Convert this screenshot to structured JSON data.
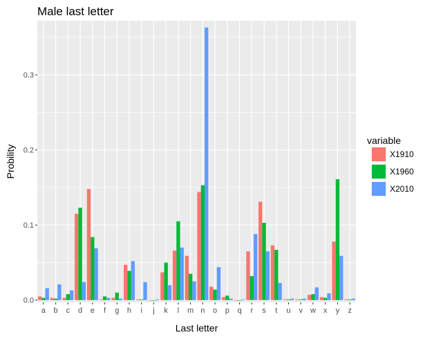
{
  "chart_data": {
    "type": "bar",
    "title": "Male last letter",
    "xlabel": "Last letter",
    "ylabel": "Probility",
    "ylim": [
      -0.003,
      0.372
    ],
    "yticks": [
      0.0,
      0.1,
      0.2,
      0.3
    ],
    "ytick_labels": [
      "0.0",
      "0.1",
      "0.2",
      "0.3"
    ],
    "grid": true,
    "legend_title": "variable",
    "legend_position": "right",
    "categories": [
      "a",
      "b",
      "c",
      "d",
      "e",
      "f",
      "g",
      "h",
      "i",
      "j",
      "k",
      "l",
      "m",
      "n",
      "o",
      "p",
      "q",
      "r",
      "s",
      "t",
      "u",
      "v",
      "w",
      "x",
      "y",
      "z"
    ],
    "series": [
      {
        "name": "X1910",
        "color": "#F8766D",
        "values": [
          0.005,
          0.003,
          0.003,
          0.115,
          0.148,
          0.001,
          0.003,
          0.047,
          0.001,
          0.0,
          0.037,
          0.066,
          0.059,
          0.144,
          0.018,
          0.004,
          0.0,
          0.065,
          0.131,
          0.073,
          0.001,
          0.001,
          0.007,
          0.004,
          0.078,
          0.001
        ]
      },
      {
        "name": "X1960",
        "color": "#00BA38",
        "values": [
          0.003,
          0.002,
          0.008,
          0.123,
          0.084,
          0.005,
          0.01,
          0.039,
          0.001,
          0.0,
          0.05,
          0.105,
          0.035,
          0.153,
          0.014,
          0.006,
          0.0,
          0.032,
          0.103,
          0.067,
          0.001,
          0.001,
          0.008,
          0.003,
          0.161,
          0.001
        ]
      },
      {
        "name": "X2010",
        "color": "#619CFF",
        "values": [
          0.016,
          0.021,
          0.013,
          0.024,
          0.069,
          0.003,
          0.002,
          0.052,
          0.024,
          0.001,
          0.02,
          0.07,
          0.025,
          0.363,
          0.044,
          0.002,
          0.001,
          0.088,
          0.065,
          0.023,
          0.002,
          0.002,
          0.017,
          0.009,
          0.059,
          0.002
        ]
      }
    ]
  }
}
